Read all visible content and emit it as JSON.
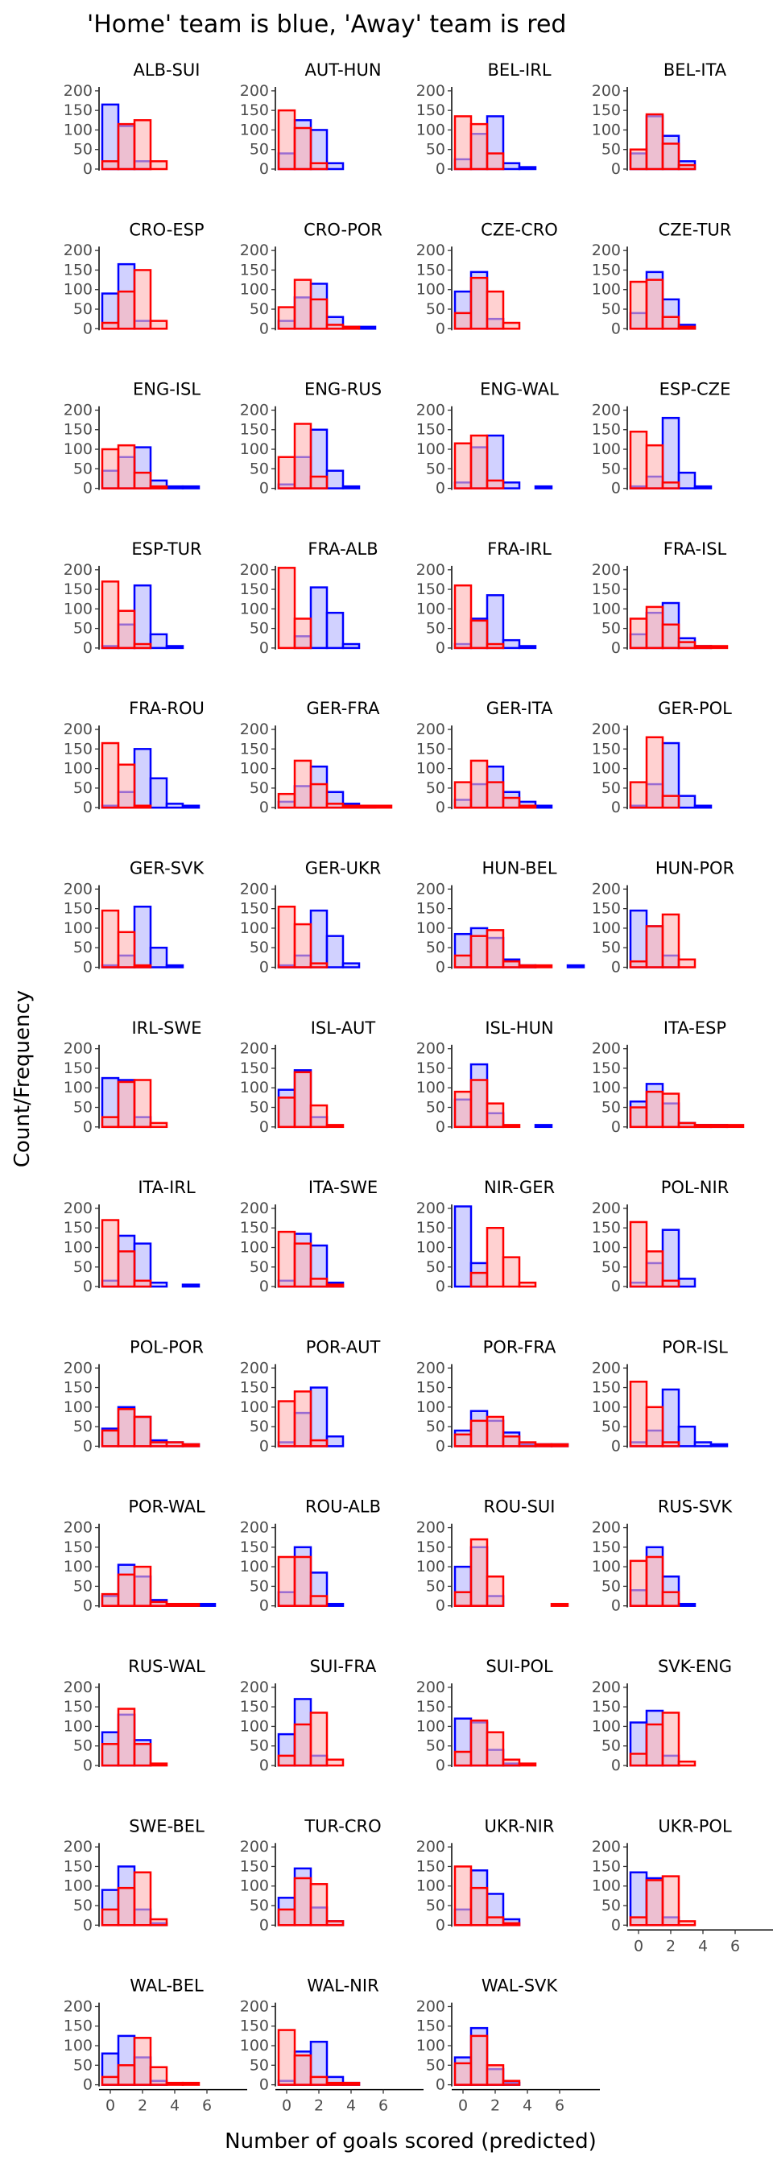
{
  "chart_data": {
    "type": "bar",
    "title": "'Home' team is blue, 'Away' team is red",
    "xlabel": "Number of goals scored (predicted)",
    "ylabel": "Count/Frequency",
    "x_ticks": [
      0,
      2,
      4,
      6
    ],
    "y_ticks": [
      0,
      50,
      100,
      150,
      200
    ],
    "xlim": [
      -0.5,
      7.5
    ],
    "ylim": [
      0,
      210
    ],
    "goals": [
      0,
      1,
      2,
      3,
      4,
      5,
      6,
      7
    ],
    "series_colors": {
      "home": "#0000ff",
      "away": "#ff0000"
    },
    "series_fills": {
      "home": "#b3b3ff",
      "away": "#ffb3b3"
    },
    "overlap_fill": "#a05a99",
    "grid": false,
    "legend": "none",
    "panels": [
      {
        "title": "ALB-SUI",
        "home": [
          165,
          110,
          20,
          0,
          0,
          0,
          0,
          0
        ],
        "away": [
          20,
          115,
          125,
          20,
          0,
          0,
          0,
          0
        ]
      },
      {
        "title": "AUT-HUN",
        "home": [
          40,
          125,
          100,
          15,
          0,
          0,
          0,
          0
        ],
        "away": [
          150,
          105,
          15,
          0,
          0,
          0,
          0,
          0
        ]
      },
      {
        "title": "BEL-IRL",
        "home": [
          25,
          90,
          135,
          15,
          5,
          0,
          0,
          0
        ],
        "away": [
          135,
          115,
          40,
          0,
          0,
          0,
          0,
          0
        ]
      },
      {
        "title": "BEL-ITA",
        "home": [
          40,
          135,
          85,
          20,
          0,
          0,
          0,
          0
        ],
        "away": [
          50,
          140,
          65,
          10,
          0,
          0,
          0,
          0
        ]
      },
      {
        "title": "CRO-ESP",
        "home": [
          90,
          165,
          20,
          0,
          0,
          0,
          0,
          0
        ],
        "away": [
          15,
          95,
          150,
          20,
          0,
          0,
          0,
          0
        ]
      },
      {
        "title": "CRO-POR",
        "home": [
          20,
          80,
          115,
          30,
          5,
          5,
          0,
          0
        ],
        "away": [
          55,
          125,
          75,
          10,
          5,
          0,
          0,
          0
        ]
      },
      {
        "title": "CZE-CRO",
        "home": [
          95,
          145,
          25,
          0,
          0,
          0,
          0,
          0
        ],
        "away": [
          40,
          130,
          95,
          15,
          0,
          0,
          0,
          0
        ]
      },
      {
        "title": "CZE-TUR",
        "home": [
          40,
          145,
          75,
          10,
          0,
          0,
          0,
          0
        ],
        "away": [
          120,
          125,
          30,
          5,
          0,
          0,
          0,
          0
        ]
      },
      {
        "title": "ENG-ISL",
        "home": [
          45,
          80,
          105,
          20,
          5,
          5,
          0,
          0
        ],
        "away": [
          100,
          110,
          40,
          5,
          0,
          0,
          0,
          0
        ]
      },
      {
        "title": "ENG-RUS",
        "home": [
          10,
          80,
          150,
          45,
          5,
          0,
          0,
          0
        ],
        "away": [
          80,
          165,
          30,
          0,
          0,
          0,
          0,
          0
        ]
      },
      {
        "title": "ENG-WAL",
        "home": [
          15,
          105,
          135,
          15,
          0,
          5,
          0,
          0
        ],
        "away": [
          115,
          135,
          20,
          0,
          0,
          0,
          0,
          0
        ]
      },
      {
        "title": "ESP-CZE",
        "home": [
          5,
          30,
          180,
          40,
          5,
          0,
          0,
          0
        ],
        "away": [
          145,
          110,
          15,
          0,
          0,
          0,
          0,
          0
        ]
      },
      {
        "title": "ESP-TUR",
        "home": [
          5,
          60,
          160,
          35,
          5,
          0,
          0,
          0
        ],
        "away": [
          170,
          95,
          10,
          0,
          0,
          0,
          0,
          0
        ]
      },
      {
        "title": "FRA-ALB",
        "home": [
          0,
          30,
          155,
          90,
          10,
          0,
          0,
          0
        ],
        "away": [
          205,
          75,
          0,
          0,
          0,
          0,
          0,
          0
        ]
      },
      {
        "title": "FRA-IRL",
        "home": [
          10,
          75,
          135,
          20,
          5,
          0,
          0,
          0
        ],
        "away": [
          160,
          70,
          10,
          0,
          0,
          0,
          0,
          0
        ]
      },
      {
        "title": "FRA-ISL",
        "home": [
          35,
          90,
          115,
          25,
          5,
          0,
          0,
          0
        ],
        "away": [
          75,
          105,
          60,
          15,
          5,
          5,
          0,
          0
        ]
      },
      {
        "title": "FRA-ROU",
        "home": [
          5,
          40,
          150,
          75,
          10,
          5,
          0,
          0
        ],
        "away": [
          165,
          110,
          5,
          0,
          0,
          0,
          0,
          0
        ]
      },
      {
        "title": "GER-FRA",
        "home": [
          15,
          55,
          105,
          40,
          10,
          5,
          0,
          0
        ],
        "away": [
          35,
          120,
          60,
          10,
          5,
          5,
          5,
          0
        ]
      },
      {
        "title": "GER-ITA",
        "home": [
          20,
          60,
          105,
          40,
          15,
          5,
          0,
          0
        ],
        "away": [
          65,
          120,
          65,
          25,
          5,
          0,
          0,
          0
        ]
      },
      {
        "title": "GER-POL",
        "home": [
          5,
          60,
          165,
          30,
          5,
          0,
          0,
          0
        ],
        "away": [
          65,
          180,
          30,
          0,
          0,
          0,
          0,
          0
        ]
      },
      {
        "title": "GER-SVK",
        "home": [
          5,
          30,
          155,
          50,
          5,
          0,
          0,
          0
        ],
        "away": [
          145,
          90,
          5,
          0,
          0,
          0,
          0,
          0
        ]
      },
      {
        "title": "GER-UKR",
        "home": [
          5,
          30,
          145,
          80,
          10,
          0,
          0,
          0
        ],
        "away": [
          155,
          110,
          10,
          0,
          0,
          0,
          0,
          0
        ]
      },
      {
        "title": "HUN-BEL",
        "home": [
          85,
          100,
          75,
          20,
          5,
          0,
          0,
          5
        ],
        "away": [
          30,
          80,
          95,
          15,
          5,
          5,
          0,
          0
        ]
      },
      {
        "title": "HUN-POR",
        "home": [
          145,
          105,
          30,
          0,
          0,
          0,
          0,
          0
        ],
        "away": [
          15,
          105,
          135,
          20,
          0,
          0,
          0,
          0
        ]
      },
      {
        "title": "IRL-SWE",
        "home": [
          125,
          120,
          25,
          0,
          0,
          0,
          0,
          0
        ],
        "away": [
          25,
          115,
          120,
          10,
          0,
          0,
          0,
          0
        ]
      },
      {
        "title": "ISL-AUT",
        "home": [
          95,
          145,
          25,
          0,
          0,
          0,
          0,
          0
        ],
        "away": [
          75,
          140,
          55,
          5,
          0,
          0,
          0,
          0
        ]
      },
      {
        "title": "ISL-HUN",
        "home": [
          70,
          160,
          35,
          0,
          0,
          5,
          0,
          0
        ],
        "away": [
          90,
          120,
          60,
          5,
          0,
          0,
          0,
          0
        ]
      },
      {
        "title": "ITA-ESP",
        "home": [
          65,
          110,
          60,
          10,
          5,
          5,
          0,
          0
        ],
        "away": [
          50,
          90,
          85,
          10,
          5,
          5,
          5,
          0
        ]
      },
      {
        "title": "ITA-IRL",
        "home": [
          15,
          130,
          110,
          10,
          0,
          5,
          0,
          0
        ],
        "away": [
          170,
          90,
          15,
          0,
          0,
          0,
          0,
          0
        ]
      },
      {
        "title": "ITA-SWE",
        "home": [
          15,
          135,
          105,
          10,
          0,
          0,
          0,
          0
        ],
        "away": [
          140,
          110,
          20,
          5,
          0,
          0,
          0,
          0
        ]
      },
      {
        "title": "NIR-GER",
        "home": [
          205,
          60,
          0,
          0,
          0,
          0,
          0,
          0
        ],
        "away": [
          0,
          35,
          150,
          75,
          10,
          0,
          0,
          0
        ]
      },
      {
        "title": "POL-NIR",
        "home": [
          10,
          60,
          145,
          20,
          0,
          0,
          0,
          0
        ],
        "away": [
          165,
          90,
          15,
          0,
          0,
          0,
          0,
          0
        ]
      },
      {
        "title": "POL-POR",
        "home": [
          45,
          100,
          75,
          15,
          10,
          5,
          0,
          0
        ],
        "away": [
          40,
          95,
          75,
          10,
          10,
          5,
          0,
          0
        ]
      },
      {
        "title": "POR-AUT",
        "home": [
          10,
          85,
          150,
          25,
          0,
          0,
          0,
          0
        ],
        "away": [
          115,
          140,
          15,
          0,
          0,
          0,
          0,
          0
        ]
      },
      {
        "title": "POR-FRA",
        "home": [
          40,
          90,
          65,
          35,
          5,
          5,
          5,
          0
        ],
        "away": [
          30,
          65,
          75,
          25,
          10,
          5,
          5,
          0
        ]
      },
      {
        "title": "POR-ISL",
        "home": [
          10,
          40,
          145,
          50,
          10,
          5,
          0,
          0
        ],
        "away": [
          165,
          100,
          10,
          0,
          0,
          0,
          0,
          0
        ]
      },
      {
        "title": "POR-WAL",
        "home": [
          25,
          105,
          75,
          15,
          5,
          5,
          5,
          0
        ],
        "away": [
          30,
          80,
          100,
          10,
          5,
          5,
          0,
          0
        ]
      },
      {
        "title": "ROU-ALB",
        "home": [
          35,
          150,
          85,
          5,
          0,
          0,
          0,
          0
        ],
        "away": [
          125,
          125,
          25,
          0,
          0,
          0,
          0,
          0
        ]
      },
      {
        "title": "ROU-SUI",
        "home": [
          100,
          150,
          25,
          0,
          0,
          0,
          0,
          0
        ],
        "away": [
          35,
          170,
          75,
          0,
          0,
          0,
          5,
          0
        ]
      },
      {
        "title": "RUS-SVK",
        "home": [
          40,
          150,
          75,
          5,
          0,
          0,
          0,
          0
        ],
        "away": [
          115,
          125,
          35,
          0,
          0,
          0,
          0,
          0
        ]
      },
      {
        "title": "RUS-WAL",
        "home": [
          85,
          130,
          65,
          0,
          0,
          0,
          0,
          0
        ],
        "away": [
          55,
          145,
          55,
          5,
          0,
          0,
          0,
          0
        ]
      },
      {
        "title": "SUI-FRA",
        "home": [
          80,
          170,
          25,
          0,
          0,
          0,
          0,
          0
        ],
        "away": [
          25,
          105,
          135,
          15,
          0,
          0,
          0,
          0
        ]
      },
      {
        "title": "SUI-POL",
        "home": [
          120,
          110,
          40,
          5,
          0,
          0,
          0,
          0
        ],
        "away": [
          35,
          115,
          85,
          15,
          5,
          0,
          0,
          0
        ]
      },
      {
        "title": "SVK-ENG",
        "home": [
          110,
          140,
          25,
          0,
          0,
          0,
          0,
          0
        ],
        "away": [
          30,
          105,
          135,
          10,
          0,
          0,
          0,
          0
        ]
      },
      {
        "title": "SWE-BEL",
        "home": [
          90,
          150,
          40,
          5,
          0,
          0,
          0,
          0
        ],
        "away": [
          40,
          95,
          135,
          15,
          0,
          0,
          0,
          0
        ]
      },
      {
        "title": "TUR-CRO",
        "home": [
          70,
          145,
          45,
          10,
          0,
          0,
          0,
          0
        ],
        "away": [
          40,
          120,
          105,
          10,
          0,
          0,
          0,
          0
        ]
      },
      {
        "title": "UKR-NIR",
        "home": [
          40,
          140,
          80,
          15,
          0,
          0,
          0,
          0
        ],
        "away": [
          150,
          95,
          20,
          5,
          0,
          0,
          0,
          0
        ]
      },
      {
        "title": "UKR-POL",
        "home": [
          135,
          120,
          20,
          0,
          0,
          0,
          0,
          0
        ],
        "away": [
          20,
          115,
          125,
          10,
          0,
          0,
          0,
          0
        ]
      },
      {
        "title": "WAL-BEL",
        "home": [
          80,
          125,
          70,
          10,
          0,
          0,
          0,
          0
        ],
        "away": [
          20,
          50,
          120,
          45,
          5,
          5,
          0,
          0
        ]
      },
      {
        "title": "WAL-NIR",
        "home": [
          10,
          85,
          110,
          20,
          5,
          0,
          0,
          0
        ],
        "away": [
          140,
          75,
          20,
          5,
          5,
          0,
          0,
          0
        ]
      },
      {
        "title": "WAL-SVK",
        "home": [
          70,
          145,
          40,
          5,
          0,
          0,
          0,
          0
        ],
        "away": [
          55,
          125,
          50,
          10,
          0,
          0,
          0,
          0
        ]
      }
    ]
  }
}
